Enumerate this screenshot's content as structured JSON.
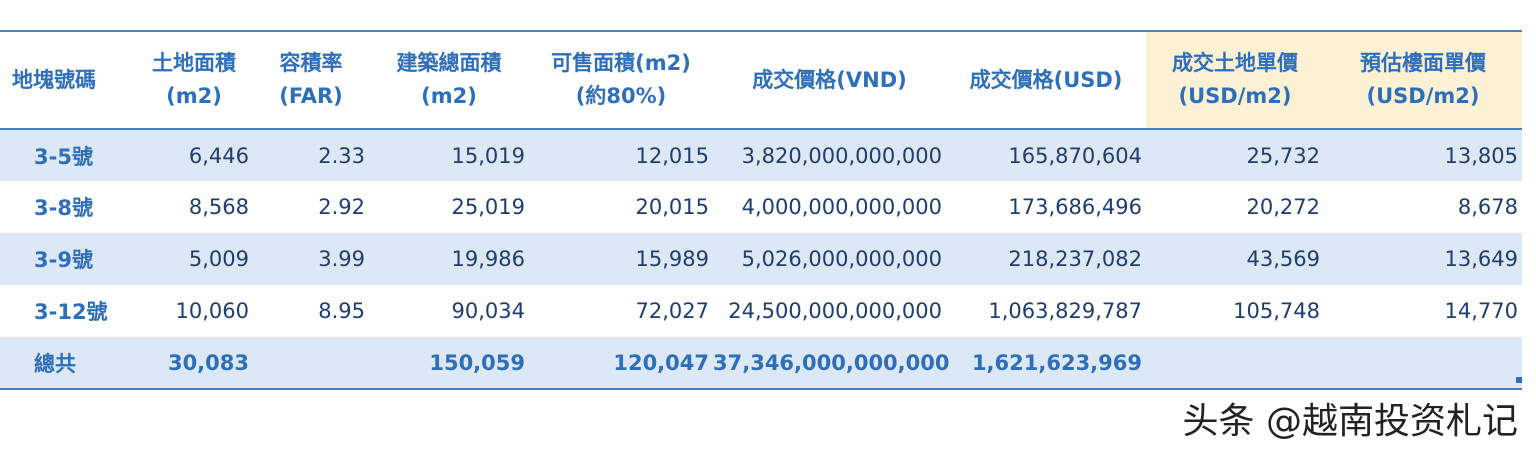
{
  "table": {
    "headers": [
      [
        "地塊號碼",
        ""
      ],
      [
        "土地面積",
        "(m2)"
      ],
      [
        "容積率",
        "(FAR)"
      ],
      [
        "建築總面積",
        "(m2)"
      ],
      [
        "可售面積(m2)",
        "(約80%)"
      ],
      [
        "成交價格(VND)",
        ""
      ],
      [
        "成交價格(USD)",
        ""
      ],
      [
        "成交土地單價",
        "(USD/m2)"
      ],
      [
        "預估樓面單價",
        "(USD/m2)"
      ]
    ],
    "rows": [
      [
        "3-5號",
        "6,446",
        "2.33",
        "15,019",
        "12,015",
        "3,820,000,000,000",
        "165,870,604",
        "25,732",
        "13,805"
      ],
      [
        "3-8號",
        "8,568",
        "2.92",
        "25,019",
        "20,015",
        "4,000,000,000,000",
        "173,686,496",
        "20,272",
        "8,678"
      ],
      [
        "3-9號",
        "5,009",
        "3.99",
        "19,986",
        "15,989",
        "5,026,000,000,000",
        "218,237,082",
        "43,569",
        "13,649"
      ],
      [
        "3-12號",
        "10,060",
        "8.95",
        "90,034",
        "72,027",
        "24,500,000,000,000",
        "1,063,829,787",
        "105,748",
        "14,770"
      ]
    ],
    "total": [
      "總共",
      "30,083",
      "",
      "150,059",
      "120,047",
      "37,346,000,000,000",
      "1,621,623,969",
      "",
      ""
    ]
  },
  "watermark": "头条 @越南投资札记",
  "colors": {
    "header_text": "#2f6fba",
    "border": "#4a7fc1",
    "row_shade": "#dde8f6",
    "highlight_header": "#fdf1d3"
  }
}
